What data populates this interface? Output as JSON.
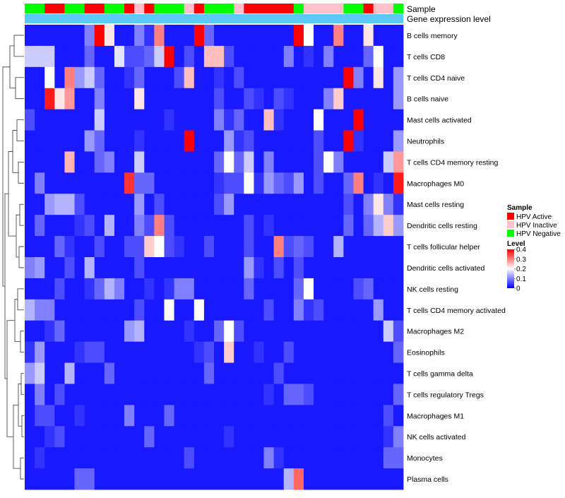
{
  "chart_data": {
    "type": "heatmap",
    "title": "",
    "annotation_rows": [
      "Sample",
      "Gene expression level"
    ],
    "rows": [
      "B cells memory",
      "T cells CD8",
      "T cells CD4 naive",
      "B cells naive",
      "Mast cells activated",
      "Neutrophils",
      "T cells CD4 memory resting",
      "Macrophages M0",
      "Mast cells resting",
      "Dendritic cells resting",
      "T cells follicular helper",
      "Dendritic cells activated",
      "NK cells resting",
      "T cells CD4 memory activated",
      "Macrophages M2",
      "Eosinophils",
      "T cells gamma delta",
      "T cells regulatory  Tregs",
      "Macrophages M1",
      "NK cells activated",
      "Monocytes",
      "Plasma cells"
    ],
    "sample_groups": [
      "neg",
      "neg",
      "act",
      "act",
      "neg",
      "neg",
      "act",
      "act",
      "neg",
      "neg",
      "act",
      "inact",
      "act",
      "neg",
      "neg",
      "neg",
      "inact",
      "act",
      "neg",
      "neg",
      "neg",
      "inact",
      "act",
      "act",
      "act",
      "act",
      "act",
      "neg",
      "inact",
      "inact",
      "inact",
      "inact",
      "neg",
      "neg",
      "act",
      "inact",
      "inact",
      "neg"
    ],
    "gene_expression_level_color": "#5bc8f5",
    "values": [
      [
        0.02,
        0.02,
        0.02,
        0.02,
        0.02,
        0.02,
        0.1,
        0.4,
        0.22,
        0.02,
        0.02,
        0.1,
        0.04,
        0.3,
        0.02,
        0.02,
        0.02,
        0.4,
        0.08,
        0.02,
        0.02,
        0.02,
        0.02,
        0.02,
        0.02,
        0.02,
        0.02,
        0.4,
        0.2,
        0.02,
        0.02,
        0.3,
        0.02,
        0.02,
        0.22,
        0.02,
        0.02,
        0.02
      ],
      [
        0.16,
        0.16,
        0.16,
        0.02,
        0.02,
        0.02,
        0.08,
        0.02,
        0.02,
        0.18,
        0.06,
        0.06,
        0.08,
        0.16,
        0.4,
        0.02,
        0.06,
        0.02,
        0.25,
        0.25,
        0.06,
        0.02,
        0.02,
        0.02,
        0.02,
        0.02,
        0.1,
        0.02,
        0.04,
        0.02,
        0.1,
        0.02,
        0.02,
        0.02,
        0.08,
        0.2,
        0.02,
        0.02
      ],
      [
        0.02,
        0.02,
        0.2,
        0.02,
        0.3,
        0.12,
        0.16,
        0.08,
        0.02,
        0.02,
        0.04,
        0.08,
        0.02,
        0.02,
        0.02,
        0.06,
        0.25,
        0.02,
        0.02,
        0.04,
        0.02,
        0.06,
        0.02,
        0.02,
        0.02,
        0.02,
        0.02,
        0.02,
        0.02,
        0.02,
        0.02,
        0.02,
        0.4,
        0.1,
        0.02,
        0.22,
        0.02,
        0.12
      ],
      [
        0.02,
        0.02,
        0.38,
        0.22,
        0.28,
        0.02,
        0.02,
        0.1,
        0.02,
        0.02,
        0.02,
        0.22,
        0.02,
        0.02,
        0.02,
        0.02,
        0.02,
        0.02,
        0.02,
        0.06,
        0.02,
        0.02,
        0.06,
        0.04,
        0.02,
        0.06,
        0.04,
        0.02,
        0.02,
        0.02,
        0.1,
        0.24,
        0.02,
        0.02,
        0.02,
        0.02,
        0.02,
        0.12
      ],
      [
        0.06,
        0.02,
        0.02,
        0.02,
        0.02,
        0.02,
        0.02,
        0.16,
        0.02,
        0.02,
        0.02,
        0.02,
        0.02,
        0.02,
        0.04,
        0.02,
        0.02,
        0.02,
        0.02,
        0.1,
        0.04,
        0.08,
        0.02,
        0.02,
        0.25,
        0.04,
        0.02,
        0.02,
        0.02,
        0.2,
        0.02,
        0.02,
        0.02,
        0.4,
        0.02,
        0.02,
        0.02,
        0.02
      ],
      [
        0.02,
        0.02,
        0.02,
        0.02,
        0.02,
        0.02,
        0.12,
        0.08,
        0.02,
        0.02,
        0.02,
        0.04,
        0.02,
        0.02,
        0.02,
        0.02,
        0.4,
        0.02,
        0.02,
        0.02,
        0.12,
        0.04,
        0.06,
        0.02,
        0.02,
        0.02,
        0.02,
        0.02,
        0.02,
        0.06,
        0.02,
        0.02,
        0.4,
        0.04,
        0.02,
        0.02,
        0.02,
        0.12
      ],
      [
        0.02,
        0.02,
        0.02,
        0.02,
        0.26,
        0.02,
        0.02,
        0.08,
        0.1,
        0.02,
        0.02,
        0.16,
        0.02,
        0.02,
        0.02,
        0.02,
        0.02,
        0.02,
        0.02,
        0.08,
        0.2,
        0.08,
        0.16,
        0.02,
        0.1,
        0.02,
        0.02,
        0.02,
        0.02,
        0.06,
        0.2,
        0.1,
        0.02,
        0.02,
        0.02,
        0.02,
        0.16,
        0.28
      ],
      [
        0.02,
        0.1,
        0.02,
        0.02,
        0.02,
        0.02,
        0.02,
        0.02,
        0.02,
        0.02,
        0.36,
        0.08,
        0.08,
        0.02,
        0.02,
        0.02,
        0.02,
        0.02,
        0.02,
        0.04,
        0.06,
        0.06,
        0.2,
        0.04,
        0.12,
        0.08,
        0.06,
        0.12,
        0.02,
        0.06,
        0.02,
        0.02,
        0.08,
        0.3,
        0.02,
        0.04,
        0.02,
        0.38
      ],
      [
        0.02,
        0.02,
        0.12,
        0.14,
        0.14,
        0.06,
        0.02,
        0.02,
        0.02,
        0.02,
        0.02,
        0.12,
        0.02,
        0.06,
        0.02,
        0.02,
        0.02,
        0.02,
        0.02,
        0.06,
        0.12,
        0.02,
        0.02,
        0.02,
        0.02,
        0.02,
        0.02,
        0.02,
        0.02,
        0.02,
        0.02,
        0.02,
        0.06,
        0.02,
        0.1,
        0.22,
        0.1,
        0.04
      ],
      [
        0.02,
        0.08,
        0.02,
        0.02,
        0.02,
        0.04,
        0.06,
        0.02,
        0.14,
        0.02,
        0.02,
        0.1,
        0.06,
        0.3,
        0.06,
        0.02,
        0.02,
        0.02,
        0.02,
        0.02,
        0.02,
        0.02,
        0.06,
        0.02,
        0.04,
        0.02,
        0.02,
        0.02,
        0.02,
        0.02,
        0.02,
        0.02,
        0.08,
        0.02,
        0.08,
        0.14,
        0.24,
        0.12
      ],
      [
        0.02,
        0.02,
        0.02,
        0.08,
        0.04,
        0.02,
        0.02,
        0.06,
        0.02,
        0.02,
        0.06,
        0.06,
        0.24,
        0.2,
        0.06,
        0.04,
        0.02,
        0.02,
        0.06,
        0.02,
        0.02,
        0.02,
        0.06,
        0.02,
        0.02,
        0.3,
        0.06,
        0.08,
        0.06,
        0.02,
        0.02,
        0.14,
        0.02,
        0.02,
        0.02,
        0.02,
        0.02,
        0.02
      ],
      [
        0.1,
        0.12,
        0.02,
        0.02,
        0.06,
        0.02,
        0.14,
        0.02,
        0.02,
        0.02,
        0.02,
        0.06,
        0.02,
        0.02,
        0.02,
        0.02,
        0.02,
        0.02,
        0.02,
        0.02,
        0.02,
        0.02,
        0.12,
        0.04,
        0.02,
        0.06,
        0.02,
        0.06,
        0.02,
        0.02,
        0.02,
        0.02,
        0.02,
        0.02,
        0.02,
        0.02,
        0.02,
        0.02
      ],
      [
        0.02,
        0.02,
        0.02,
        0.06,
        0.02,
        0.02,
        0.04,
        0.08,
        0.14,
        0.1,
        0.02,
        0.02,
        0.04,
        0.02,
        0.04,
        0.1,
        0.1,
        0.02,
        0.02,
        0.02,
        0.02,
        0.02,
        0.08,
        0.02,
        0.02,
        0.02,
        0.02,
        0.08,
        0.2,
        0.02,
        0.02,
        0.02,
        0.02,
        0.06,
        0.08,
        0.02,
        0.02,
        0.02
      ],
      [
        0.14,
        0.1,
        0.1,
        0.02,
        0.02,
        0.02,
        0.02,
        0.02,
        0.02,
        0.02,
        0.02,
        0.06,
        0.02,
        0.02,
        0.2,
        0.02,
        0.02,
        0.2,
        0.02,
        0.02,
        0.02,
        0.02,
        0.02,
        0.02,
        0.06,
        0.02,
        0.02,
        0.1,
        0.04,
        0.06,
        0.02,
        0.02,
        0.02,
        0.02,
        0.02,
        0.12,
        0.02,
        0.02
      ],
      [
        0.02,
        0.02,
        0.04,
        0.08,
        0.02,
        0.02,
        0.02,
        0.02,
        0.02,
        0.02,
        0.12,
        0.14,
        0.02,
        0.02,
        0.02,
        0.02,
        0.04,
        0.02,
        0.02,
        0.08,
        0.2,
        0.06,
        0.02,
        0.02,
        0.02,
        0.02,
        0.02,
        0.02,
        0.02,
        0.02,
        0.02,
        0.02,
        0.02,
        0.02,
        0.02,
        0.02,
        0.16,
        0.06
      ],
      [
        0.04,
        0.12,
        0.02,
        0.02,
        0.02,
        0.04,
        0.06,
        0.06,
        0.02,
        0.02,
        0.02,
        0.02,
        0.02,
        0.02,
        0.02,
        0.02,
        0.02,
        0.04,
        0.06,
        0.02,
        0.24,
        0.02,
        0.02,
        0.04,
        0.02,
        0.02,
        0.06,
        0.02,
        0.02,
        0.02,
        0.02,
        0.02,
        0.02,
        0.02,
        0.02,
        0.02,
        0.02,
        0.08
      ],
      [
        0.12,
        0.16,
        0.02,
        0.02,
        0.14,
        0.02,
        0.02,
        0.02,
        0.08,
        0.02,
        0.02,
        0.02,
        0.02,
        0.02,
        0.02,
        0.02,
        0.02,
        0.02,
        0.08,
        0.02,
        0.02,
        0.02,
        0.02,
        0.02,
        0.02,
        0.06,
        0.02,
        0.02,
        0.02,
        0.02,
        0.02,
        0.02,
        0.02,
        0.02,
        0.02,
        0.02,
        0.02,
        0.02
      ],
      [
        0.02,
        0.1,
        0.02,
        0.06,
        0.02,
        0.02,
        0.02,
        0.02,
        0.02,
        0.02,
        0.02,
        0.02,
        0.02,
        0.02,
        0.02,
        0.02,
        0.02,
        0.02,
        0.02,
        0.02,
        0.02,
        0.02,
        0.02,
        0.02,
        0.04,
        0.02,
        0.08,
        0.08,
        0.06,
        0.02,
        0.02,
        0.02,
        0.02,
        0.02,
        0.02,
        0.02,
        0.02,
        0.08
      ],
      [
        0.02,
        0.06,
        0.06,
        0.02,
        0.02,
        0.04,
        0.02,
        0.02,
        0.02,
        0.02,
        0.1,
        0.02,
        0.02,
        0.02,
        0.08,
        0.02,
        0.02,
        0.02,
        0.02,
        0.02,
        0.02,
        0.02,
        0.02,
        0.02,
        0.02,
        0.02,
        0.02,
        0.02,
        0.02,
        0.02,
        0.02,
        0.02,
        0.02,
        0.02,
        0.02,
        0.02,
        0.06,
        0.02
      ],
      [
        0.02,
        0.02,
        0.04,
        0.06,
        0.02,
        0.02,
        0.02,
        0.02,
        0.02,
        0.02,
        0.02,
        0.02,
        0.08,
        0.02,
        0.02,
        0.02,
        0.02,
        0.02,
        0.02,
        0.02,
        0.04,
        0.02,
        0.02,
        0.02,
        0.02,
        0.02,
        0.02,
        0.02,
        0.02,
        0.02,
        0.02,
        0.02,
        0.02,
        0.02,
        0.02,
        0.02,
        0.04,
        0.1
      ],
      [
        0.02,
        0.04,
        0.02,
        0.02,
        0.02,
        0.02,
        0.02,
        0.02,
        0.02,
        0.02,
        0.02,
        0.02,
        0.02,
        0.02,
        0.02,
        0.02,
        0.06,
        0.02,
        0.02,
        0.02,
        0.02,
        0.02,
        0.02,
        0.02,
        0.1,
        0.04,
        0.02,
        0.02,
        0.02,
        0.02,
        0.02,
        0.02,
        0.02,
        0.02,
        0.02,
        0.02,
        0.08,
        0.08
      ],
      [
        0.02,
        0.02,
        0.02,
        0.02,
        0.02,
        0.08,
        0.08,
        0.02,
        0.02,
        0.02,
        0.02,
        0.02,
        0.02,
        0.02,
        0.02,
        0.02,
        0.02,
        0.02,
        0.02,
        0.02,
        0.02,
        0.02,
        0.02,
        0.02,
        0.02,
        0.02,
        0.14,
        0.32,
        0.02,
        0.02,
        0.02,
        0.02,
        0.02,
        0.02,
        0.02,
        0.02,
        0.02,
        0.02
      ]
    ],
    "color_scale": {
      "min": 0,
      "max": 0.4,
      "low": "#0000ff",
      "mid": "#ffffff",
      "high": "#ff0000",
      "mid_value": 0.2
    },
    "legends": {
      "sample": {
        "title": "Sample",
        "entries": [
          {
            "key": "act",
            "label": "HPV Active",
            "color": "#ff0000"
          },
          {
            "key": "inact",
            "label": "HPV Inactive",
            "color": "#ffc0cb"
          },
          {
            "key": "neg",
            "label": "HPV Negative",
            "color": "#00ff00"
          }
        ]
      },
      "level": {
        "title": "Level",
        "ticks": [
          0.4,
          0.3,
          0.2,
          0.1,
          0
        ]
      }
    }
  }
}
